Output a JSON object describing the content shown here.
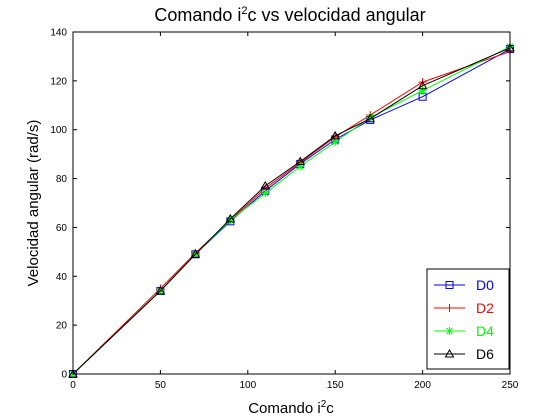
{
  "chart_data": {
    "type": "line",
    "title": "Comando i²c vs velocidad angular",
    "title_parts": [
      "Comando i",
      "2",
      "c vs velocidad angular"
    ],
    "xlabel": "Comando i²c",
    "xlabel_parts": [
      "Comando i",
      "2",
      "c"
    ],
    "ylabel": "Velocidad angular (rad/s)",
    "xlim": [
      0,
      250
    ],
    "ylim": [
      0,
      140
    ],
    "xticks": [
      0,
      50,
      100,
      150,
      200,
      250
    ],
    "yticks": [
      0,
      20,
      40,
      60,
      80,
      100,
      120,
      140
    ],
    "grid": false,
    "legend_position": "bottom-right",
    "series": [
      {
        "name": "D0",
        "color": "#0000ff",
        "marker": "square",
        "x": [
          0,
          50,
          70,
          90,
          110,
          130,
          150,
          170,
          200,
          250
        ],
        "y": [
          0,
          34,
          49,
          62.5,
          75,
          86,
          96,
          104,
          113.5,
          133
        ]
      },
      {
        "name": "D2",
        "color": "#ff0000",
        "marker": "plus",
        "x": [
          0,
          50,
          70,
          90,
          110,
          130,
          150,
          170,
          200,
          250
        ],
        "y": [
          0,
          35,
          49.5,
          63,
          76,
          86.5,
          97,
          106,
          119.5,
          132
        ]
      },
      {
        "name": "D4",
        "color": "#00ff00",
        "marker": "asterisk",
        "x": [
          0,
          50,
          70,
          90,
          110,
          130,
          150,
          170,
          200,
          250
        ],
        "y": [
          0,
          34,
          49,
          63,
          74,
          85,
          95,
          105,
          116,
          134
        ]
      },
      {
        "name": "D6",
        "color": "#000000",
        "marker": "triangle",
        "x": [
          0,
          50,
          70,
          90,
          110,
          130,
          150,
          170,
          200,
          250
        ],
        "y": [
          0,
          34,
          49,
          63.5,
          77,
          87,
          97.5,
          104.5,
          118,
          133.5
        ]
      }
    ]
  }
}
